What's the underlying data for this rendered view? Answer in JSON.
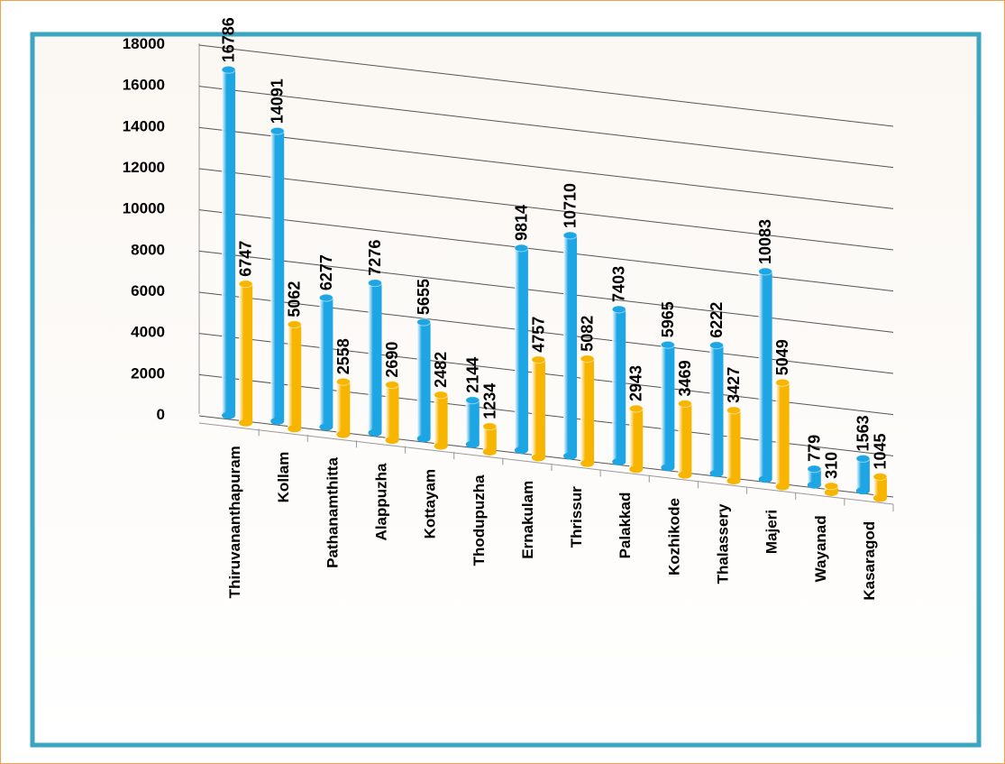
{
  "chart_data": {
    "type": "bar",
    "categories": [
      "Thiruvananthapuram",
      "Kollam",
      "Pathanamthitta",
      "Alappuzha",
      "Kottayam",
      "Thodupuzha",
      "Ernakulam",
      "Thrissur",
      "Palakkad",
      "Kozhikode",
      "Thalassery",
      "Majeri",
      "Wayanad",
      "Kasaragod"
    ],
    "series": [
      {
        "color": "#1ea5e3",
        "values": [
          16786,
          14091,
          6277,
          7276,
          5655,
          2144,
          9814,
          10710,
          7403,
          5965,
          6222,
          10083,
          779,
          1563
        ]
      },
      {
        "color": "#f7b500",
        "values": [
          6747,
          5062,
          2558,
          2690,
          2482,
          1234,
          4757,
          5082,
          2943,
          3469,
          3427,
          5049,
          310,
          1045
        ]
      }
    ],
    "ylim": [
      0,
      18000
    ],
    "yticks": [
      0,
      2000,
      4000,
      6000,
      8000,
      10000,
      12000,
      14000,
      16000,
      18000
    ],
    "grid": true
  }
}
